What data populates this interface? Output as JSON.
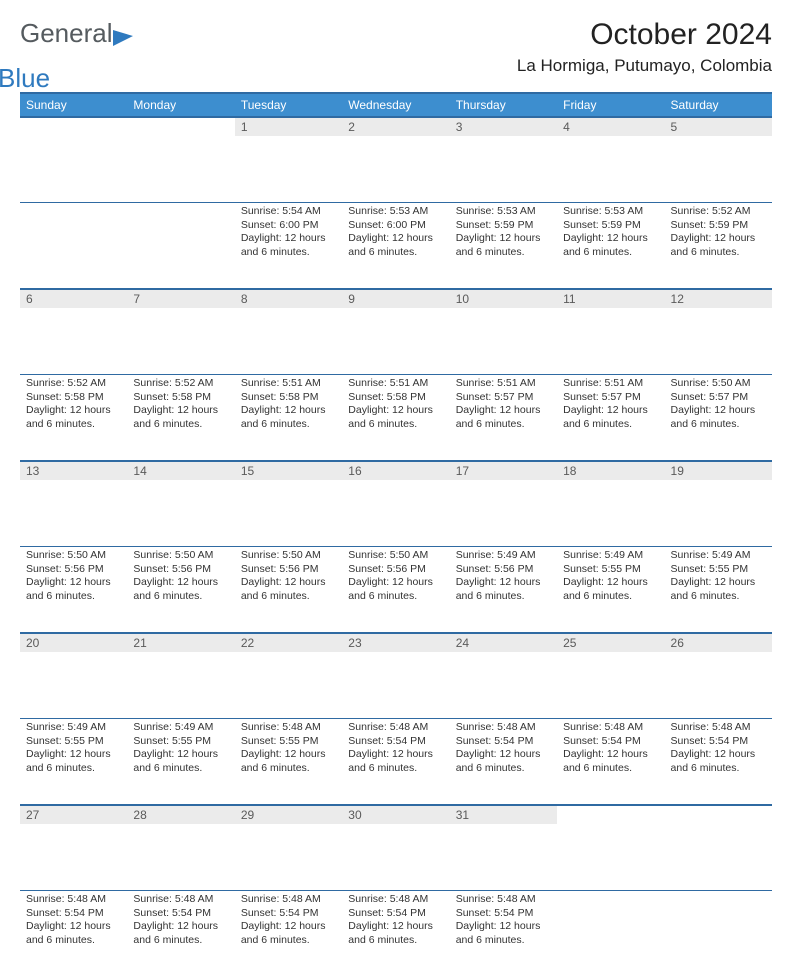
{
  "logo": {
    "word1": "General",
    "word2": "Blue"
  },
  "title": "October 2024",
  "location": "La Hormiga, Putumayo, Colombia",
  "weekdays": [
    "Sunday",
    "Monday",
    "Tuesday",
    "Wednesday",
    "Thursday",
    "Friday",
    "Saturday"
  ],
  "colors": {
    "header_bg": "#3d8ecf",
    "border": "#2f6aa2",
    "daynum_bg": "#ebebeb"
  },
  "weeks": [
    [
      {
        "n": "",
        "sunrise": "",
        "sunset": "",
        "daylight": ""
      },
      {
        "n": "",
        "sunrise": "",
        "sunset": "",
        "daylight": ""
      },
      {
        "n": "1",
        "sunrise": "Sunrise: 5:54 AM",
        "sunset": "Sunset: 6:00 PM",
        "daylight": "Daylight: 12 hours and 6 minutes."
      },
      {
        "n": "2",
        "sunrise": "Sunrise: 5:53 AM",
        "sunset": "Sunset: 6:00 PM",
        "daylight": "Daylight: 12 hours and 6 minutes."
      },
      {
        "n": "3",
        "sunrise": "Sunrise: 5:53 AM",
        "sunset": "Sunset: 5:59 PM",
        "daylight": "Daylight: 12 hours and 6 minutes."
      },
      {
        "n": "4",
        "sunrise": "Sunrise: 5:53 AM",
        "sunset": "Sunset: 5:59 PM",
        "daylight": "Daylight: 12 hours and 6 minutes."
      },
      {
        "n": "5",
        "sunrise": "Sunrise: 5:52 AM",
        "sunset": "Sunset: 5:59 PM",
        "daylight": "Daylight: 12 hours and 6 minutes."
      }
    ],
    [
      {
        "n": "6",
        "sunrise": "Sunrise: 5:52 AM",
        "sunset": "Sunset: 5:58 PM",
        "daylight": "Daylight: 12 hours and 6 minutes."
      },
      {
        "n": "7",
        "sunrise": "Sunrise: 5:52 AM",
        "sunset": "Sunset: 5:58 PM",
        "daylight": "Daylight: 12 hours and 6 minutes."
      },
      {
        "n": "8",
        "sunrise": "Sunrise: 5:51 AM",
        "sunset": "Sunset: 5:58 PM",
        "daylight": "Daylight: 12 hours and 6 minutes."
      },
      {
        "n": "9",
        "sunrise": "Sunrise: 5:51 AM",
        "sunset": "Sunset: 5:58 PM",
        "daylight": "Daylight: 12 hours and 6 minutes."
      },
      {
        "n": "10",
        "sunrise": "Sunrise: 5:51 AM",
        "sunset": "Sunset: 5:57 PM",
        "daylight": "Daylight: 12 hours and 6 minutes."
      },
      {
        "n": "11",
        "sunrise": "Sunrise: 5:51 AM",
        "sunset": "Sunset: 5:57 PM",
        "daylight": "Daylight: 12 hours and 6 minutes."
      },
      {
        "n": "12",
        "sunrise": "Sunrise: 5:50 AM",
        "sunset": "Sunset: 5:57 PM",
        "daylight": "Daylight: 12 hours and 6 minutes."
      }
    ],
    [
      {
        "n": "13",
        "sunrise": "Sunrise: 5:50 AM",
        "sunset": "Sunset: 5:56 PM",
        "daylight": "Daylight: 12 hours and 6 minutes."
      },
      {
        "n": "14",
        "sunrise": "Sunrise: 5:50 AM",
        "sunset": "Sunset: 5:56 PM",
        "daylight": "Daylight: 12 hours and 6 minutes."
      },
      {
        "n": "15",
        "sunrise": "Sunrise: 5:50 AM",
        "sunset": "Sunset: 5:56 PM",
        "daylight": "Daylight: 12 hours and 6 minutes."
      },
      {
        "n": "16",
        "sunrise": "Sunrise: 5:50 AM",
        "sunset": "Sunset: 5:56 PM",
        "daylight": "Daylight: 12 hours and 6 minutes."
      },
      {
        "n": "17",
        "sunrise": "Sunrise: 5:49 AM",
        "sunset": "Sunset: 5:56 PM",
        "daylight": "Daylight: 12 hours and 6 minutes."
      },
      {
        "n": "18",
        "sunrise": "Sunrise: 5:49 AM",
        "sunset": "Sunset: 5:55 PM",
        "daylight": "Daylight: 12 hours and 6 minutes."
      },
      {
        "n": "19",
        "sunrise": "Sunrise: 5:49 AM",
        "sunset": "Sunset: 5:55 PM",
        "daylight": "Daylight: 12 hours and 6 minutes."
      }
    ],
    [
      {
        "n": "20",
        "sunrise": "Sunrise: 5:49 AM",
        "sunset": "Sunset: 5:55 PM",
        "daylight": "Daylight: 12 hours and 6 minutes."
      },
      {
        "n": "21",
        "sunrise": "Sunrise: 5:49 AM",
        "sunset": "Sunset: 5:55 PM",
        "daylight": "Daylight: 12 hours and 6 minutes."
      },
      {
        "n": "22",
        "sunrise": "Sunrise: 5:48 AM",
        "sunset": "Sunset: 5:55 PM",
        "daylight": "Daylight: 12 hours and 6 minutes."
      },
      {
        "n": "23",
        "sunrise": "Sunrise: 5:48 AM",
        "sunset": "Sunset: 5:54 PM",
        "daylight": "Daylight: 12 hours and 6 minutes."
      },
      {
        "n": "24",
        "sunrise": "Sunrise: 5:48 AM",
        "sunset": "Sunset: 5:54 PM",
        "daylight": "Daylight: 12 hours and 6 minutes."
      },
      {
        "n": "25",
        "sunrise": "Sunrise: 5:48 AM",
        "sunset": "Sunset: 5:54 PM",
        "daylight": "Daylight: 12 hours and 6 minutes."
      },
      {
        "n": "26",
        "sunrise": "Sunrise: 5:48 AM",
        "sunset": "Sunset: 5:54 PM",
        "daylight": "Daylight: 12 hours and 6 minutes."
      }
    ],
    [
      {
        "n": "27",
        "sunrise": "Sunrise: 5:48 AM",
        "sunset": "Sunset: 5:54 PM",
        "daylight": "Daylight: 12 hours and 6 minutes."
      },
      {
        "n": "28",
        "sunrise": "Sunrise: 5:48 AM",
        "sunset": "Sunset: 5:54 PM",
        "daylight": "Daylight: 12 hours and 6 minutes."
      },
      {
        "n": "29",
        "sunrise": "Sunrise: 5:48 AM",
        "sunset": "Sunset: 5:54 PM",
        "daylight": "Daylight: 12 hours and 6 minutes."
      },
      {
        "n": "30",
        "sunrise": "Sunrise: 5:48 AM",
        "sunset": "Sunset: 5:54 PM",
        "daylight": "Daylight: 12 hours and 6 minutes."
      },
      {
        "n": "31",
        "sunrise": "Sunrise: 5:48 AM",
        "sunset": "Sunset: 5:54 PM",
        "daylight": "Daylight: 12 hours and 6 minutes."
      },
      {
        "n": "",
        "sunrise": "",
        "sunset": "",
        "daylight": ""
      },
      {
        "n": "",
        "sunrise": "",
        "sunset": "",
        "daylight": ""
      }
    ]
  ]
}
